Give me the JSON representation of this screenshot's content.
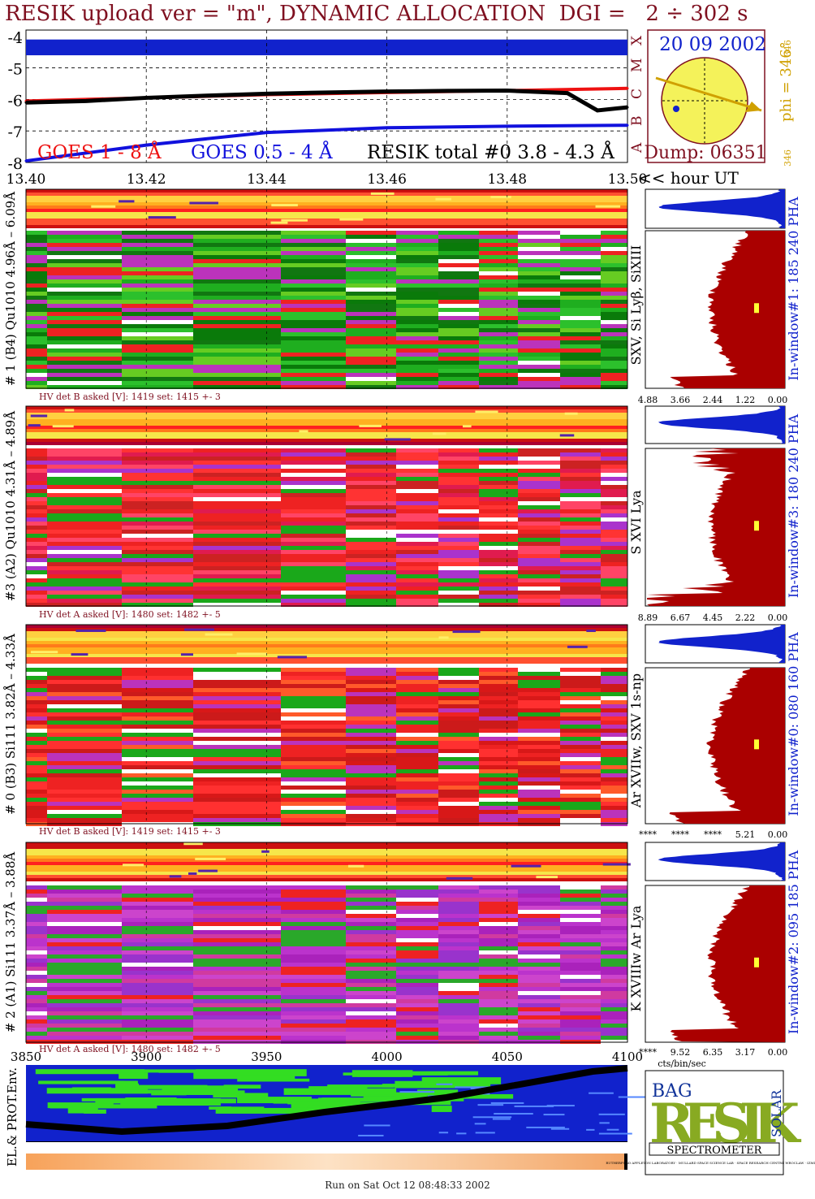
{
  "title": "RESIK upload ver = \"m\", DYNAMIC ALLOCATION  DGI =   2 ÷ 302 s",
  "footer": "Run on Sat Oct 12 08:48:33 2002",
  "chart_data": [
    {
      "type": "line",
      "panel": "goes-lightcurve",
      "x_label": "<< hour UT",
      "x_ticks": [
        "13.40",
        "13.42",
        "13.44",
        "13.46",
        "13.48",
        "13.50"
      ],
      "xlim": [
        13.4,
        13.5
      ],
      "y_ticks": [
        "-4",
        "-5",
        "-6",
        "-7",
        "-8"
      ],
      "ylim": [
        -8,
        -3.8
      ],
      "right_axis_classes": [
        "A",
        "B",
        "C",
        "M",
        "X"
      ],
      "series": [
        {
          "name": "GOES 1 - 8 Å",
          "color": "#ee1111",
          "x": [
            13.4,
            13.42,
            13.44,
            13.46,
            13.48,
            13.5
          ],
          "values": [
            -6.05,
            -5.95,
            -5.85,
            -5.78,
            -5.72,
            -5.65
          ]
        },
        {
          "name": "GOES 0.5 - 4 Å",
          "color": "#1111dd",
          "x": [
            13.4,
            13.42,
            13.44,
            13.46,
            13.48,
            13.5
          ],
          "values": [
            -7.95,
            -7.45,
            -7.05,
            -6.9,
            -6.85,
            -6.82
          ]
        },
        {
          "name": "RESIK total #0  3.8 - 4.3 Å",
          "color": "#000000",
          "x": [
            13.4,
            13.41,
            13.42,
            13.43,
            13.44,
            13.45,
            13.46,
            13.47,
            13.48,
            13.49,
            13.495,
            13.5
          ],
          "values": [
            -6.1,
            -6.05,
            -5.95,
            -5.88,
            -5.82,
            -5.78,
            -5.75,
            -5.73,
            -5.72,
            -5.8,
            -6.35,
            -6.25
          ]
        }
      ]
    },
    {
      "type": "heatmap",
      "panel": "crystal-spectra",
      "x_ticks": [
        "3850",
        "3900",
        "3950",
        "4000",
        "4050",
        "4100"
      ],
      "xlim": [
        3850,
        4100
      ],
      "channels": [
        {
          "label": "# 1 (B4) Qu1010 4.96Å – 6.09Å",
          "lines": "SXV, Si Lyβ, SiXIII",
          "hv": "HV det B asked [V]:  1419 set:  1415  +-    3",
          "pha_ticks": [
            "4.88",
            "3.66",
            "2.44",
            "1.22",
            "0.00"
          ],
          "window": "In-window#1:  185 240 PHA"
        },
        {
          "label": "#3 (A2) Qu1010  4.31Å – 4.89Å",
          "lines": "S XVI Lya",
          "hv": "HV det A asked [V]:  1480 set:  1482  +-    5",
          "pha_ticks": [
            "8.89",
            "6.67",
            "4.45",
            "2.22",
            "0.00"
          ],
          "window": "In-window#3:  180 240 PHA"
        },
        {
          "label": "# 0 (B3) Si111  3.82Å – 4.33Å",
          "lines": "Ar XVIIw,  SXV 1s-np",
          "hv": "HV det B asked [V]:  1419 set:  1415  +-    3",
          "pha_ticks": [
            "****",
            "****",
            "****",
            "5.21",
            "0.00"
          ],
          "window": "In-window#0:  080 160 PHA"
        },
        {
          "label": "# 2 (A1) Si111  3.37Å – 3.88Å",
          "lines": "K XVIIIw  Ar Lya",
          "hv": "HV det A asked [V]:  1480 set:  1482  +-    5",
          "pha_ticks": [
            "****",
            "9.52",
            "6.35",
            "3.17",
            "0.00"
          ],
          "window": "In-window#2:  095 185 PHA"
        }
      ],
      "pha_unit": "cts/bin/sec",
      "env_label": "EL.& PROT.Env."
    }
  ],
  "sun": {
    "date": "20 09 2002",
    "phi": "phi = 346°",
    "phi_sub": "346",
    "phi_small": "346",
    "dump": "Dump: 06351"
  },
  "logo": {
    "big": "RESIK",
    "small_top": "BAG",
    "small_right": "SOLAR",
    "banner": "SPECTROMETER",
    "fine": "RUTHERFORD APPLETON LABORATORY · MULLARD SPACE SCIENCE LAB · SPACE RESEARCH CENTRE WROCLAW · IZMIRAN"
  },
  "colors": {
    "frame": "#7f1020",
    "blue": "#1122cc",
    "dark_red": "#aa0000",
    "sun_yellow": "#f4f25a",
    "sun_arrow": "#d0a000",
    "env_green": "#33dd22"
  }
}
